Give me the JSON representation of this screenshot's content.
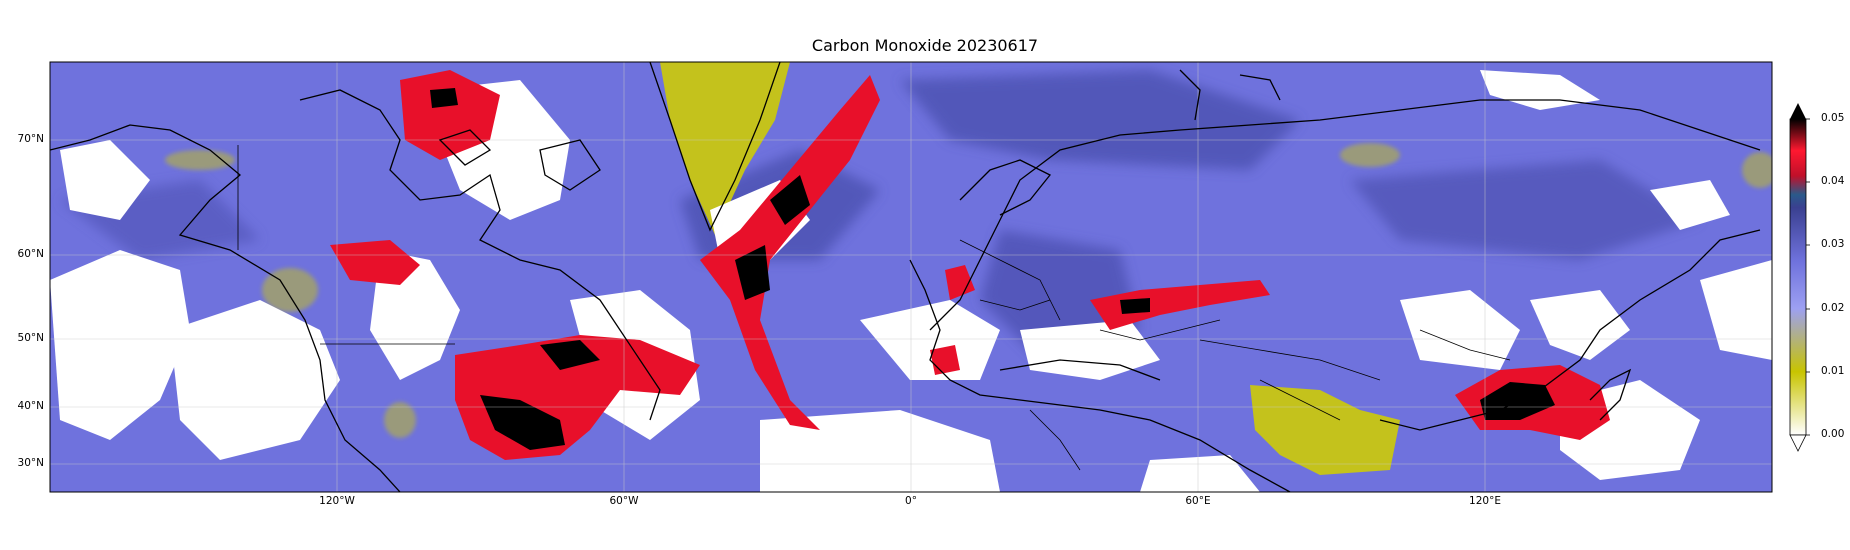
{
  "title": "Carbon Monoxide 20230617",
  "map": {
    "projection": "plate-carree",
    "lon_range": [
      -180,
      180
    ],
    "lat_range": [
      25,
      80
    ],
    "lat_ticks": [
      {
        "value": 70,
        "label": "70°N"
      },
      {
        "value": 60,
        "label": "60°N"
      },
      {
        "value": 50,
        "label": "50°N"
      },
      {
        "value": 40,
        "label": "40°N"
      },
      {
        "value": 30,
        "label": "30°N"
      }
    ],
    "lon_ticks": [
      {
        "value": -120,
        "label": "120°W"
      },
      {
        "value": -60,
        "label": "60°W"
      },
      {
        "value": 0,
        "label": "0°"
      },
      {
        "value": 60,
        "label": "60°E"
      },
      {
        "value": 120,
        "label": "120°E"
      }
    ],
    "gridlines": true,
    "background_level_color": "#6f72dd",
    "no_data_color": "#ffffff"
  },
  "colorbar": {
    "min": 0.0,
    "max": 0.05,
    "extend": "both",
    "ticks": [
      "0.00",
      "0.01",
      "0.02",
      "0.03",
      "0.04",
      "0.05"
    ],
    "colors": [
      "#ffffff",
      "#c8c400",
      "#7a7df0",
      "#3a4090",
      "#e8102a",
      "#000000"
    ]
  },
  "features": [
    {
      "name": "greenland-low-co",
      "level": "low",
      "color": "#c4c21c"
    },
    {
      "name": "tibet-low-co",
      "level": "low",
      "color": "#c4c21c"
    },
    {
      "name": "canada-wildfire-plume",
      "level": "high",
      "color": "#e8102a"
    },
    {
      "name": "atlantic-smoke-plume",
      "level": "high",
      "color": "#e8102a"
    },
    {
      "name": "siberia-plume",
      "level": "high",
      "color": "#e8102a"
    },
    {
      "name": "east-asia-plume",
      "level": "high",
      "color": "#e8102a"
    }
  ]
}
